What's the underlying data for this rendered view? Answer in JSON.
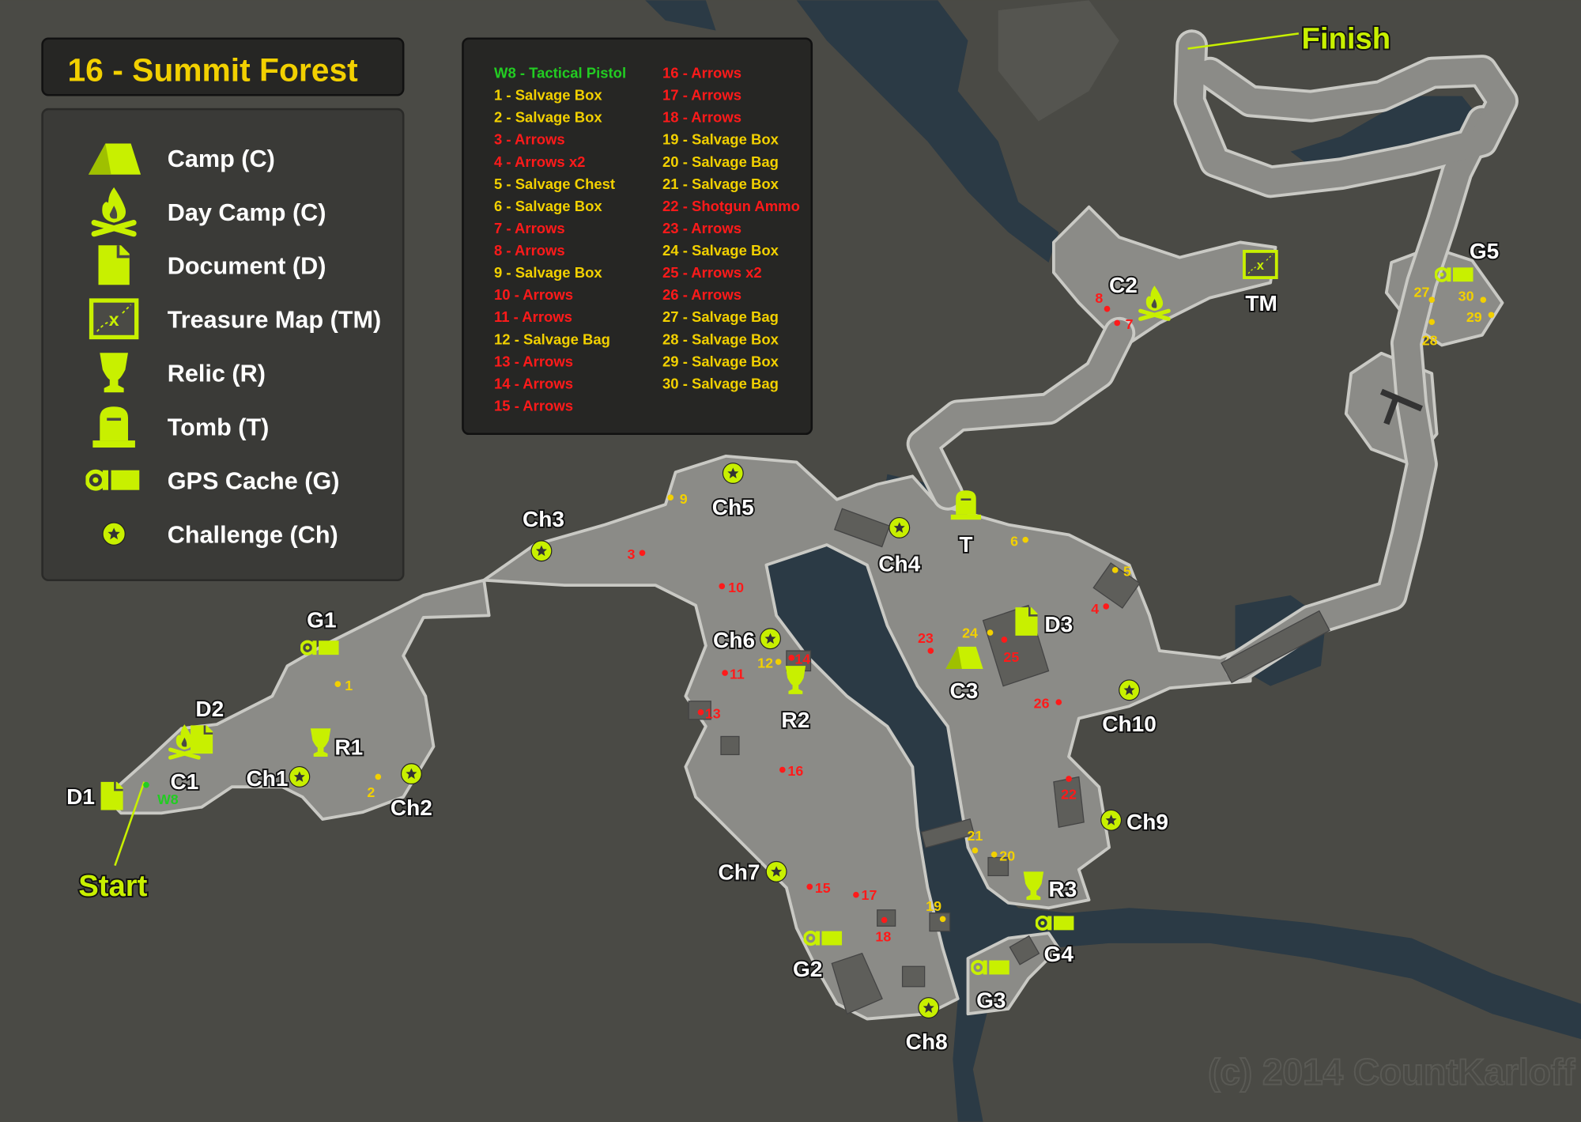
{
  "title": "16 - Summit Forest",
  "colors": {
    "background": "#4a4a45",
    "land": "#8b8b87",
    "water": "#2b3a45",
    "accent": "#c8f000",
    "red_item": "#ff1a1a",
    "yellow_item": "#f2d000",
    "green_item": "#22cc22"
  },
  "legend": [
    {
      "icon": "camp-icon",
      "label": "Camp (C)"
    },
    {
      "icon": "day-camp-icon",
      "label": "Day Camp (C)"
    },
    {
      "icon": "document-icon",
      "label": "Document (D)"
    },
    {
      "icon": "treasure-map-icon",
      "label": "Treasure Map (TM)"
    },
    {
      "icon": "relic-icon",
      "label": "Relic (R)"
    },
    {
      "icon": "tomb-icon",
      "label": "Tomb (T)"
    },
    {
      "icon": "gps-cache-icon",
      "label": "GPS Cache (G)"
    },
    {
      "icon": "challenge-icon",
      "label": "Challenge (Ch)"
    }
  ],
  "items": [
    {
      "id": "W8",
      "text": "W8 - Tactical Pistol",
      "color": "green"
    },
    {
      "id": "1",
      "text": "1 - Salvage Box",
      "color": "yellow"
    },
    {
      "id": "2",
      "text": "2 - Salvage Box",
      "color": "yellow"
    },
    {
      "id": "3",
      "text": "3 - Arrows",
      "color": "red"
    },
    {
      "id": "4",
      "text": "4 - Arrows x2",
      "color": "red"
    },
    {
      "id": "5",
      "text": "5 - Salvage Chest",
      "color": "yellow"
    },
    {
      "id": "6",
      "text": "6 - Salvage Box",
      "color": "yellow"
    },
    {
      "id": "7",
      "text": "7 - Arrows",
      "color": "red"
    },
    {
      "id": "8",
      "text": "8 - Arrows",
      "color": "red"
    },
    {
      "id": "9",
      "text": "9 - Salvage Box",
      "color": "yellow"
    },
    {
      "id": "10",
      "text": "10 - Arrows",
      "color": "red"
    },
    {
      "id": "11",
      "text": "11 - Arrows",
      "color": "red"
    },
    {
      "id": "12",
      "text": "12 - Salvage Bag",
      "color": "yellow"
    },
    {
      "id": "13",
      "text": "13 - Arrows",
      "color": "red"
    },
    {
      "id": "14",
      "text": "14 - Arrows",
      "color": "red"
    },
    {
      "id": "15",
      "text": "15 - Arrows",
      "color": "red"
    },
    {
      "id": "16",
      "text": "16 - Arrows",
      "color": "red"
    },
    {
      "id": "17",
      "text": "17 - Arrows",
      "color": "red"
    },
    {
      "id": "18",
      "text": "18 - Arrows",
      "color": "red"
    },
    {
      "id": "19",
      "text": "19 - Salvage Box",
      "color": "yellow"
    },
    {
      "id": "20",
      "text": "20 - Salvage Bag",
      "color": "yellow"
    },
    {
      "id": "21",
      "text": "21 - Salvage Box",
      "color": "yellow"
    },
    {
      "id": "22",
      "text": "22 - Shotgun Ammo",
      "color": "red"
    },
    {
      "id": "23",
      "text": "23 - Arrows",
      "color": "red"
    },
    {
      "id": "24",
      "text": "24 - Salvage Box",
      "color": "yellow"
    },
    {
      "id": "25",
      "text": "25 - Arrows x2",
      "color": "red"
    },
    {
      "id": "26",
      "text": "26 - Arrows",
      "color": "red"
    },
    {
      "id": "27",
      "text": "27 - Salvage Bag",
      "color": "yellow"
    },
    {
      "id": "28",
      "text": "28 - Salvage Box",
      "color": "yellow"
    },
    {
      "id": "29",
      "text": "29 - Salvage Box",
      "color": "yellow"
    },
    {
      "id": "30",
      "text": "30 - Salvage Bag",
      "color": "yellow"
    }
  ],
  "markers": [
    {
      "label": "C1",
      "icon": "day-camp-icon"
    },
    {
      "label": "C2",
      "icon": "day-camp-icon"
    },
    {
      "label": "C3",
      "icon": "camp-icon"
    },
    {
      "label": "D1",
      "icon": "document-icon"
    },
    {
      "label": "D2",
      "icon": "document-icon"
    },
    {
      "label": "D3",
      "icon": "document-icon"
    },
    {
      "label": "TM",
      "icon": "treasure-map-icon"
    },
    {
      "label": "R1",
      "icon": "relic-icon"
    },
    {
      "label": "R2",
      "icon": "relic-icon"
    },
    {
      "label": "R3",
      "icon": "relic-icon"
    },
    {
      "label": "T",
      "icon": "tomb-icon"
    },
    {
      "label": "G1",
      "icon": "gps-cache-icon"
    },
    {
      "label": "G2",
      "icon": "gps-cache-icon"
    },
    {
      "label": "G3",
      "icon": "gps-cache-icon"
    },
    {
      "label": "G4",
      "icon": "gps-cache-icon"
    },
    {
      "label": "G5",
      "icon": "gps-cache-icon"
    },
    {
      "label": "Ch1",
      "icon": "challenge-icon"
    },
    {
      "label": "Ch2",
      "icon": "challenge-icon"
    },
    {
      "label": "Ch3",
      "icon": "challenge-icon"
    },
    {
      "label": "Ch4",
      "icon": "challenge-icon"
    },
    {
      "label": "Ch5",
      "icon": "challenge-icon"
    },
    {
      "label": "Ch6",
      "icon": "challenge-icon"
    },
    {
      "label": "Ch7",
      "icon": "challenge-icon"
    },
    {
      "label": "Ch8",
      "icon": "challenge-icon"
    },
    {
      "label": "Ch9",
      "icon": "challenge-icon"
    },
    {
      "label": "Ch10",
      "icon": "challenge-icon"
    }
  ],
  "start_label": "Start",
  "finish_label": "Finish",
  "watermark": "(c) 2014 CountKarloff"
}
